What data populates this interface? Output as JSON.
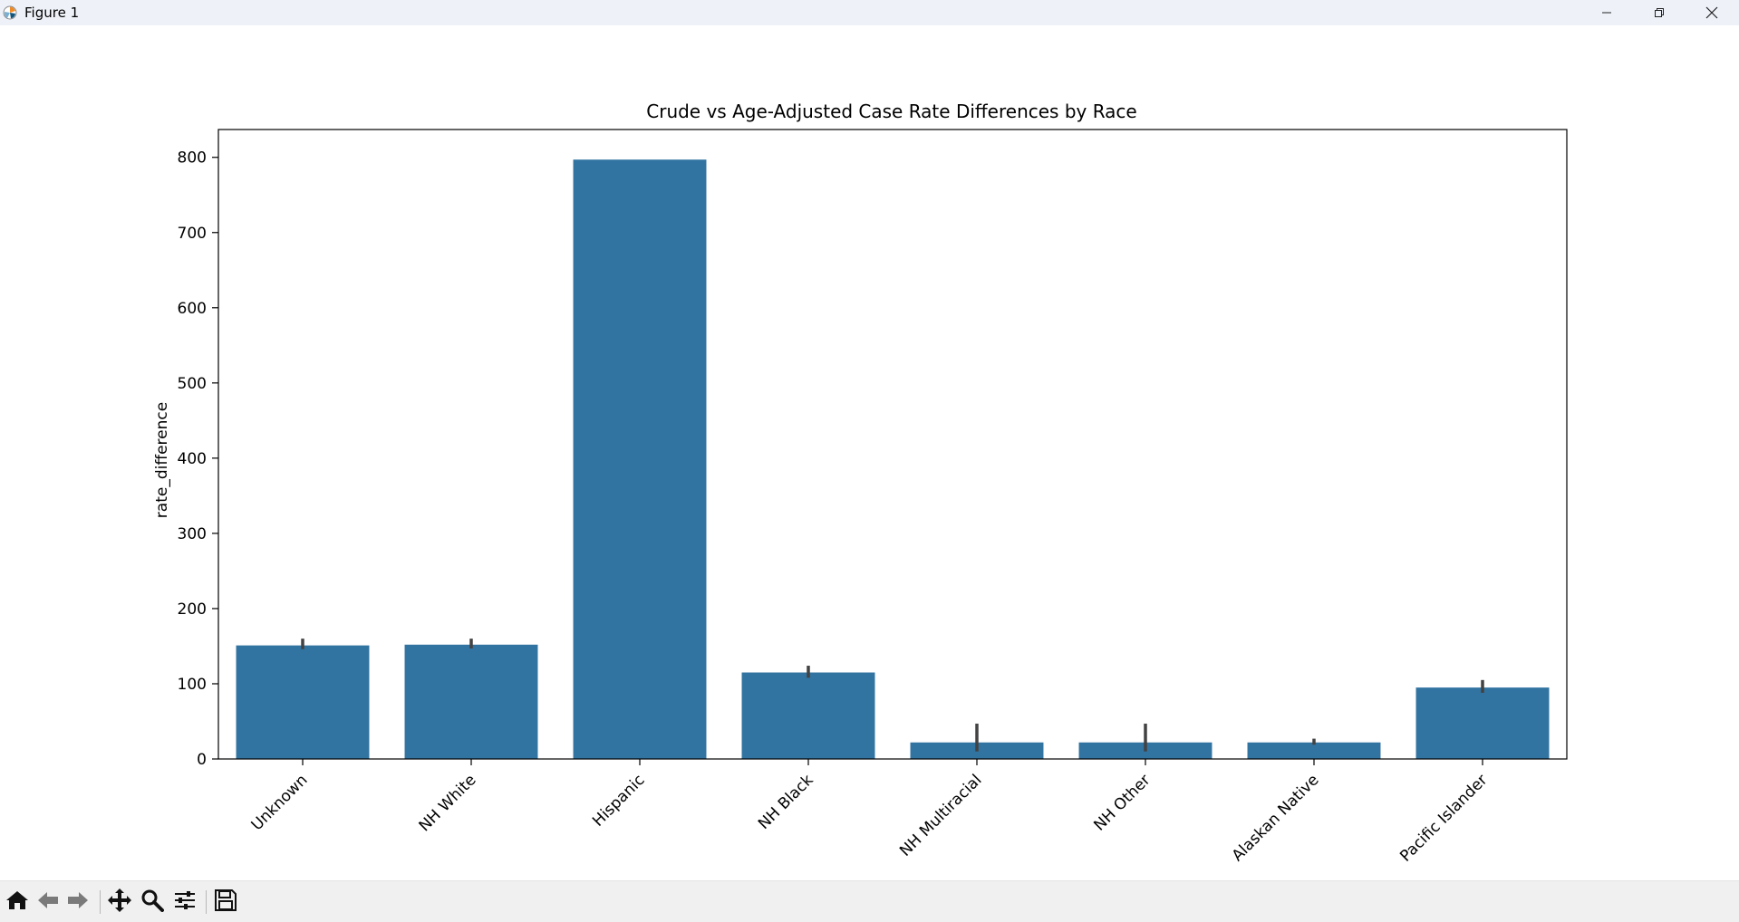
{
  "window": {
    "title": "Figure 1",
    "app_icon": "matplotlib-icon",
    "controls": [
      "minimize-icon",
      "restore-icon",
      "close-icon"
    ]
  },
  "toolbar": {
    "tools": [
      "home-icon",
      "back-arrow-icon",
      "forward-arrow-icon",
      "pan-icon",
      "zoom-icon",
      "configure-subplots-icon",
      "save-icon"
    ]
  },
  "chart_data": {
    "type": "bar",
    "title": "Crude vs Age-Adjusted Case Rate Differences by Race",
    "xlabel": "",
    "ylabel": "rate_difference",
    "categories": [
      "Unknown",
      "NH White",
      "Hispanic",
      "NH Black",
      "NH Multiracial",
      "NH Other",
      "Alaskan Native",
      "Pacific Islander"
    ],
    "categories_visible": [
      "Unknown",
      "NH White",
      "Hispanic",
      "NH Black",
      "NH Multiracial",
      "NH Other",
      "Alaskan Native",
      "Pacific Islander"
    ],
    "values": [
      151,
      152,
      797,
      115,
      22,
      22,
      22,
      95
    ],
    "error_bars": [
      [
        146,
        160
      ],
      [
        147,
        160
      ],
      [
        797,
        797
      ],
      [
        108,
        124
      ],
      [
        10,
        47
      ],
      [
        10,
        47
      ],
      [
        19,
        27
      ],
      [
        88,
        105
      ]
    ],
    "yticks": [
      0,
      100,
      200,
      300,
      400,
      500,
      600,
      700,
      800
    ],
    "ylim": [
      0,
      837
    ],
    "grid": false,
    "legend": "none",
    "bar_color": "#3274a1",
    "errorbar_color": "#424242",
    "tick_label_rotation": "45 degrees"
  }
}
